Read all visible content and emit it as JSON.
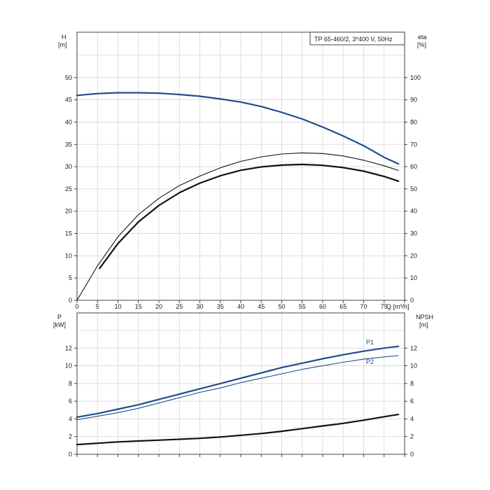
{
  "chart_data": [
    {
      "type": "line",
      "title": "TP 65-460/2, 3*400 V, 50Hz",
      "left_axis": {
        "label": "H",
        "unit": "[m]",
        "ylim": [
          0,
          55
        ],
        "ticks": [
          0,
          5,
          10,
          15,
          20,
          25,
          30,
          35,
          40,
          45,
          50
        ]
      },
      "right_axis": {
        "label": "eta",
        "unit": "[%]",
        "ylim": [
          0,
          110
        ],
        "ticks": [
          0,
          10,
          20,
          30,
          40,
          50,
          60,
          70,
          80,
          90,
          100
        ]
      },
      "x_axis": {
        "label": "Q [m³/h]",
        "xlim": [
          0,
          80
        ],
        "ticks": [
          0,
          5,
          10,
          15,
          20,
          25,
          30,
          35,
          40,
          45,
          50,
          55,
          60,
          65,
          70,
          75
        ]
      },
      "grid": true,
      "series": [
        {
          "axis": "left",
          "color": "#1f4e8c",
          "width": 2.2,
          "x": [
            0,
            5,
            10,
            15,
            20,
            25,
            30,
            35,
            40,
            45,
            50,
            55,
            60,
            65,
            70,
            75,
            78.5
          ],
          "y": [
            46.0,
            46.4,
            46.6,
            46.6,
            46.5,
            46.2,
            45.8,
            45.2,
            44.5,
            43.5,
            42.2,
            40.7,
            38.9,
            36.9,
            34.7,
            32.1,
            30.6
          ]
        },
        {
          "axis": "right",
          "color": "#111111",
          "width": 1.1,
          "x": [
            0,
            5,
            10,
            15,
            20,
            25,
            30,
            35,
            40,
            45,
            50,
            55,
            60,
            65,
            70,
            75,
            78.5
          ],
          "y": [
            0,
            15.5,
            28.5,
            38.5,
            45.8,
            51.5,
            55.8,
            59.5,
            62.4,
            64.4,
            65.7,
            66.2,
            65.9,
            64.8,
            62.9,
            60.4,
            58.3
          ]
        },
        {
          "axis": "right",
          "color": "#111111",
          "width": 2.2,
          "x": [
            5.5,
            10,
            15,
            20,
            25,
            30,
            35,
            40,
            45,
            50,
            55,
            60,
            65,
            70,
            75,
            78.5
          ],
          "y": [
            14.3,
            25.5,
            35.2,
            42.6,
            48.3,
            52.6,
            55.9,
            58.4,
            59.9,
            60.7,
            61.0,
            60.6,
            59.6,
            58.0,
            55.6,
            53.5
          ]
        }
      ]
    },
    {
      "type": "line",
      "left_axis": {
        "label": "P",
        "unit": "[kW]",
        "ylim": [
          0,
          14
        ],
        "ticks": [
          0,
          2,
          4,
          6,
          8,
          10,
          12
        ]
      },
      "right_axis": {
        "label": "NPSH",
        "unit": "[m]",
        "ylim": [
          0,
          14
        ],
        "ticks": [
          0,
          2,
          4,
          6,
          8,
          10,
          12
        ]
      },
      "x_axis": {
        "xlim": [
          0,
          80
        ]
      },
      "grid": true,
      "series": [
        {
          "name": "P1",
          "axis": "left",
          "color": "#1f4e8c",
          "width": 2.2,
          "x": [
            0,
            5,
            10,
            15,
            20,
            25,
            30,
            35,
            40,
            45,
            50,
            55,
            60,
            65,
            70,
            75,
            78.5
          ],
          "y": [
            4.2,
            4.6,
            5.1,
            5.6,
            6.2,
            6.8,
            7.4,
            8.0,
            8.6,
            9.2,
            9.8,
            10.3,
            10.8,
            11.25,
            11.65,
            12.0,
            12.2
          ]
        },
        {
          "name": "P2",
          "axis": "left",
          "color": "#1f4e8c",
          "width": 1.1,
          "x": [
            0,
            5,
            10,
            15,
            20,
            25,
            30,
            35,
            40,
            45,
            50,
            55,
            60,
            65,
            70,
            75,
            78.5
          ],
          "y": [
            3.9,
            4.3,
            4.7,
            5.2,
            5.8,
            6.4,
            7.0,
            7.5,
            8.1,
            8.6,
            9.1,
            9.6,
            10.0,
            10.4,
            10.75,
            11.0,
            11.15
          ]
        },
        {
          "axis": "right",
          "color": "#111111",
          "width": 2.2,
          "x": [
            0,
            5,
            10,
            15,
            20,
            25,
            30,
            35,
            40,
            45,
            50,
            55,
            60,
            65,
            70,
            75,
            78.5
          ],
          "y": [
            1.1,
            1.25,
            1.4,
            1.5,
            1.6,
            1.7,
            1.8,
            1.95,
            2.15,
            2.35,
            2.6,
            2.9,
            3.2,
            3.5,
            3.85,
            4.25,
            4.5
          ]
        }
      ]
    }
  ]
}
